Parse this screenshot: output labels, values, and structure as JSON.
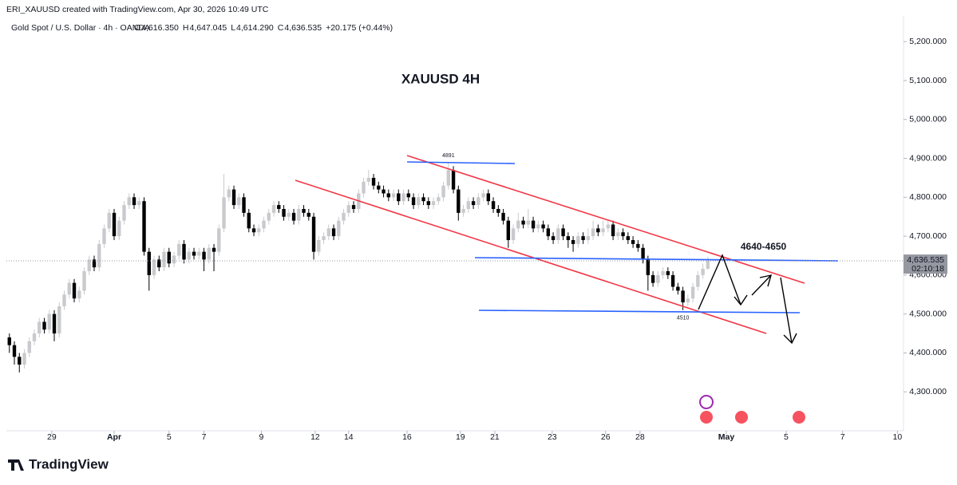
{
  "header": {
    "credit": "ERI_XAUUSD created with TradingView.com, Apr 30, 2026 10:49 UTC",
    "symbol": "Gold Spot / U.S. Dollar · 4h · OANDA",
    "ohlc": [
      {
        "key": "O",
        "value": "4,616.350"
      },
      {
        "key": "H",
        "value": "4,647.045"
      },
      {
        "key": "L",
        "value": "4,614.290"
      },
      {
        "key": "C",
        "value": "4,636.535"
      }
    ],
    "change": "+20.175 (+0.44%)"
  },
  "brand": "TradingView",
  "chart_data": {
    "type": "candlestick",
    "title": "XAUUSD  4H",
    "up_color": "#c9cacd",
    "down_color": "#000000",
    "xlim": [
      -0.6,
      178.9
    ],
    "ylim": [
      4200,
      5266
    ],
    "xticks": [
      {
        "value": 8.5,
        "label": "29"
      },
      {
        "value": 21,
        "label": "Apr"
      },
      {
        "value": 32,
        "label": "5"
      },
      {
        "value": 39,
        "label": "7"
      },
      {
        "value": 50.5,
        "label": "9"
      },
      {
        "value": 61.3,
        "label": "12"
      },
      {
        "value": 68,
        "label": "14"
      },
      {
        "value": 79.7,
        "label": "16"
      },
      {
        "value": 90.4,
        "label": "19"
      },
      {
        "value": 97.3,
        "label": "21"
      },
      {
        "value": 108.8,
        "label": "23"
      },
      {
        "value": 119.5,
        "label": "26"
      },
      {
        "value": 126.4,
        "label": "28"
      },
      {
        "value": 143.7,
        "label": "May"
      },
      {
        "value": 155.7,
        "label": "5"
      },
      {
        "value": 167,
        "label": "7"
      },
      {
        "value": 178,
        "label": "10"
      }
    ],
    "yticks": [
      {
        "value": 4300,
        "label": "4,300.000"
      },
      {
        "value": 4400,
        "label": "4,400.000"
      },
      {
        "value": 4500,
        "label": "4,500.000"
      },
      {
        "value": 4600,
        "label": "4,600.000"
      },
      {
        "value": 4700,
        "label": "4,700.000"
      },
      {
        "value": 4800,
        "label": "4,800.000"
      },
      {
        "value": 4900,
        "label": "4,900.000"
      },
      {
        "value": 5000,
        "label": "5,000.000"
      },
      {
        "value": 5100,
        "label": "5,100.000"
      },
      {
        "value": 5200,
        "label": "5,200.000"
      }
    ],
    "last_price": {
      "value": 4636.535,
      "label": "4,636.535",
      "countdown": "02:10:18"
    },
    "annotations": [
      {
        "text": "4891",
        "x": 88,
        "y": 4891
      },
      {
        "text": "4510",
        "x": 135,
        "y": 4510
      },
      {
        "text": "4640-4650",
        "x": 144,
        "y": 4645
      }
    ],
    "ohlc": [
      [
        4440,
        4450,
        4400,
        4420
      ],
      [
        4420,
        4430,
        4370,
        4390
      ],
      [
        4390,
        4400,
        4350,
        4370
      ],
      [
        4370,
        4410,
        4360,
        4400
      ],
      [
        4400,
        4440,
        4390,
        4430
      ],
      [
        4430,
        4460,
        4420,
        4450
      ],
      [
        4450,
        4490,
        4440,
        4480
      ],
      [
        4480,
        4490,
        4450,
        4460
      ],
      [
        4460,
        4510,
        4450,
        4500
      ],
      [
        4500,
        4510,
        4430,
        4450
      ],
      [
        4450,
        4530,
        4440,
        4520
      ],
      [
        4520,
        4560,
        4510,
        4550
      ],
      [
        4550,
        4590,
        4540,
        4580
      ],
      [
        4580,
        4590,
        4530,
        4540
      ],
      [
        4540,
        4570,
        4530,
        4560
      ],
      [
        4560,
        4620,
        4550,
        4610
      ],
      [
        4610,
        4650,
        4600,
        4640
      ],
      [
        4640,
        4650,
        4610,
        4620
      ],
      [
        4620,
        4690,
        4610,
        4680
      ],
      [
        4680,
        4730,
        4670,
        4720
      ],
      [
        4720,
        4770,
        4710,
        4760
      ],
      [
        4760,
        4770,
        4690,
        4700
      ],
      [
        4700,
        4750,
        4690,
        4740
      ],
      [
        4740,
        4790,
        4730,
        4780
      ],
      [
        4780,
        4810,
        4770,
        4800
      ],
      [
        4800,
        4810,
        4770,
        4780
      ],
      [
        4780,
        4800,
        4770,
        4790
      ],
      [
        4790,
        4800,
        4650,
        4660
      ],
      [
        4660,
        4670,
        4560,
        4600
      ],
      [
        4600,
        4650,
        4590,
        4640
      ],
      [
        4640,
        4650,
        4610,
        4620
      ],
      [
        4620,
        4670,
        4610,
        4660
      ],
      [
        4660,
        4670,
        4620,
        4630
      ],
      [
        4630,
        4660,
        4620,
        4650
      ],
      [
        4650,
        4690,
        4640,
        4680
      ],
      [
        4680,
        4690,
        4630,
        4640
      ],
      [
        4640,
        4670,
        4630,
        4660
      ],
      [
        4660,
        4670,
        4640,
        4650
      ],
      [
        4650,
        4670,
        4640,
        4660
      ],
      [
        4660,
        4670,
        4610,
        4640
      ],
      [
        4640,
        4680,
        4630,
        4670
      ],
      [
        4670,
        4680,
        4610,
        4660
      ],
      [
        4660,
        4730,
        4650,
        4720
      ],
      [
        4720,
        4860,
        4710,
        4800
      ],
      [
        4800,
        4830,
        4790,
        4820
      ],
      [
        4820,
        4830,
        4770,
        4780
      ],
      [
        4780,
        4810,
        4770,
        4800
      ],
      [
        4800,
        4810,
        4750,
        4760
      ],
      [
        4760,
        4770,
        4710,
        4720
      ],
      [
        4720,
        4730,
        4700,
        4710
      ],
      [
        4710,
        4730,
        4700,
        4720
      ],
      [
        4720,
        4750,
        4710,
        4740
      ],
      [
        4740,
        4770,
        4730,
        4760
      ],
      [
        4760,
        4790,
        4750,
        4780
      ],
      [
        4780,
        4790,
        4760,
        4770
      ],
      [
        4770,
        4780,
        4740,
        4750
      ],
      [
        4750,
        4770,
        4740,
        4760
      ],
      [
        4760,
        4770,
        4730,
        4740
      ],
      [
        4740,
        4780,
        4730,
        4770
      ],
      [
        4770,
        4780,
        4750,
        4760
      ],
      [
        4760,
        4770,
        4740,
        4750
      ],
      [
        4750,
        4760,
        4640,
        4660
      ],
      [
        4660,
        4700,
        4650,
        4690
      ],
      [
        4690,
        4710,
        4680,
        4700
      ],
      [
        4700,
        4730,
        4690,
        4720
      ],
      [
        4720,
        4730,
        4690,
        4700
      ],
      [
        4700,
        4750,
        4690,
        4740
      ],
      [
        4740,
        4770,
        4730,
        4760
      ],
      [
        4760,
        4790,
        4750,
        4780
      ],
      [
        4780,
        4790,
        4760,
        4770
      ],
      [
        4770,
        4820,
        4760,
        4810
      ],
      [
        4810,
        4850,
        4800,
        4840
      ],
      [
        4840,
        4870,
        4830,
        4850
      ],
      [
        4850,
        4860,
        4820,
        4830
      ],
      [
        4830,
        4840,
        4810,
        4820
      ],
      [
        4820,
        4830,
        4800,
        4810
      ],
      [
        4810,
        4820,
        4790,
        4800
      ],
      [
        4800,
        4820,
        4790,
        4810
      ],
      [
        4810,
        4820,
        4780,
        4790
      ],
      [
        4790,
        4820,
        4780,
        4810
      ],
      [
        4810,
        4820,
        4790,
        4800
      ],
      [
        4800,
        4810,
        4770,
        4780
      ],
      [
        4780,
        4810,
        4770,
        4800
      ],
      [
        4800,
        4810,
        4780,
        4790
      ],
      [
        4790,
        4800,
        4770,
        4780
      ],
      [
        4780,
        4800,
        4770,
        4790
      ],
      [
        4790,
        4810,
        4780,
        4800
      ],
      [
        4800,
        4840,
        4790,
        4830
      ],
      [
        4830,
        4891,
        4820,
        4870
      ],
      [
        4870,
        4880,
        4810,
        4820
      ],
      [
        4820,
        4830,
        4740,
        4760
      ],
      [
        4760,
        4780,
        4750,
        4770
      ],
      [
        4770,
        4800,
        4760,
        4790
      ],
      [
        4790,
        4800,
        4770,
        4780
      ],
      [
        4780,
        4810,
        4770,
        4800
      ],
      [
        4800,
        4820,
        4790,
        4810
      ],
      [
        4810,
        4820,
        4780,
        4790
      ],
      [
        4790,
        4800,
        4760,
        4770
      ],
      [
        4770,
        4780,
        4750,
        4760
      ],
      [
        4760,
        4770,
        4730,
        4740
      ],
      [
        4740,
        4750,
        4670,
        4690
      ],
      [
        4690,
        4730,
        4680,
        4720
      ],
      [
        4720,
        4760,
        4710,
        4740
      ],
      [
        4740,
        4750,
        4720,
        4730
      ],
      [
        4730,
        4770,
        4720,
        4740
      ],
      [
        4740,
        4750,
        4710,
        4720
      ],
      [
        4720,
        4740,
        4710,
        4730
      ],
      [
        4730,
        4740,
        4710,
        4720
      ],
      [
        4720,
        4730,
        4690,
        4700
      ],
      [
        4700,
        4710,
        4680,
        4690
      ],
      [
        4690,
        4730,
        4680,
        4720
      ],
      [
        4720,
        4730,
        4690,
        4700
      ],
      [
        4700,
        4710,
        4670,
        4690
      ],
      [
        4690,
        4700,
        4660,
        4680
      ],
      [
        4680,
        4710,
        4670,
        4700
      ],
      [
        4700,
        4710,
        4680,
        4690
      ],
      [
        4690,
        4720,
        4680,
        4700
      ],
      [
        4700,
        4740,
        4690,
        4720
      ],
      [
        4720,
        4730,
        4700,
        4710
      ],
      [
        4710,
        4740,
        4700,
        4720
      ],
      [
        4720,
        4740,
        4710,
        4730
      ],
      [
        4730,
        4740,
        4690,
        4700
      ],
      [
        4700,
        4720,
        4690,
        4710
      ],
      [
        4710,
        4720,
        4690,
        4700
      ],
      [
        4700,
        4710,
        4680,
        4690
      ],
      [
        4690,
        4700,
        4670,
        4680
      ],
      [
        4680,
        4690,
        4660,
        4670
      ],
      [
        4670,
        4680,
        4630,
        4640
      ],
      [
        4640,
        4650,
        4560,
        4600
      ],
      [
        4600,
        4610,
        4570,
        4580
      ],
      [
        4580,
        4610,
        4570,
        4600
      ],
      [
        4600,
        4620,
        4590,
        4610
      ],
      [
        4610,
        4620,
        4590,
        4600
      ],
      [
        4600,
        4610,
        4560,
        4570
      ],
      [
        4570,
        4580,
        4550,
        4560
      ],
      [
        4560,
        4570,
        4510,
        4530
      ],
      [
        4530,
        4550,
        4520,
        4540
      ],
      [
        4540,
        4580,
        4530,
        4570
      ],
      [
        4570,
        4610,
        4560,
        4600
      ],
      [
        4600,
        4630,
        4590,
        4616.35
      ],
      [
        4616.35,
        4647.045,
        4614.29,
        4636.535
      ]
    ]
  }
}
